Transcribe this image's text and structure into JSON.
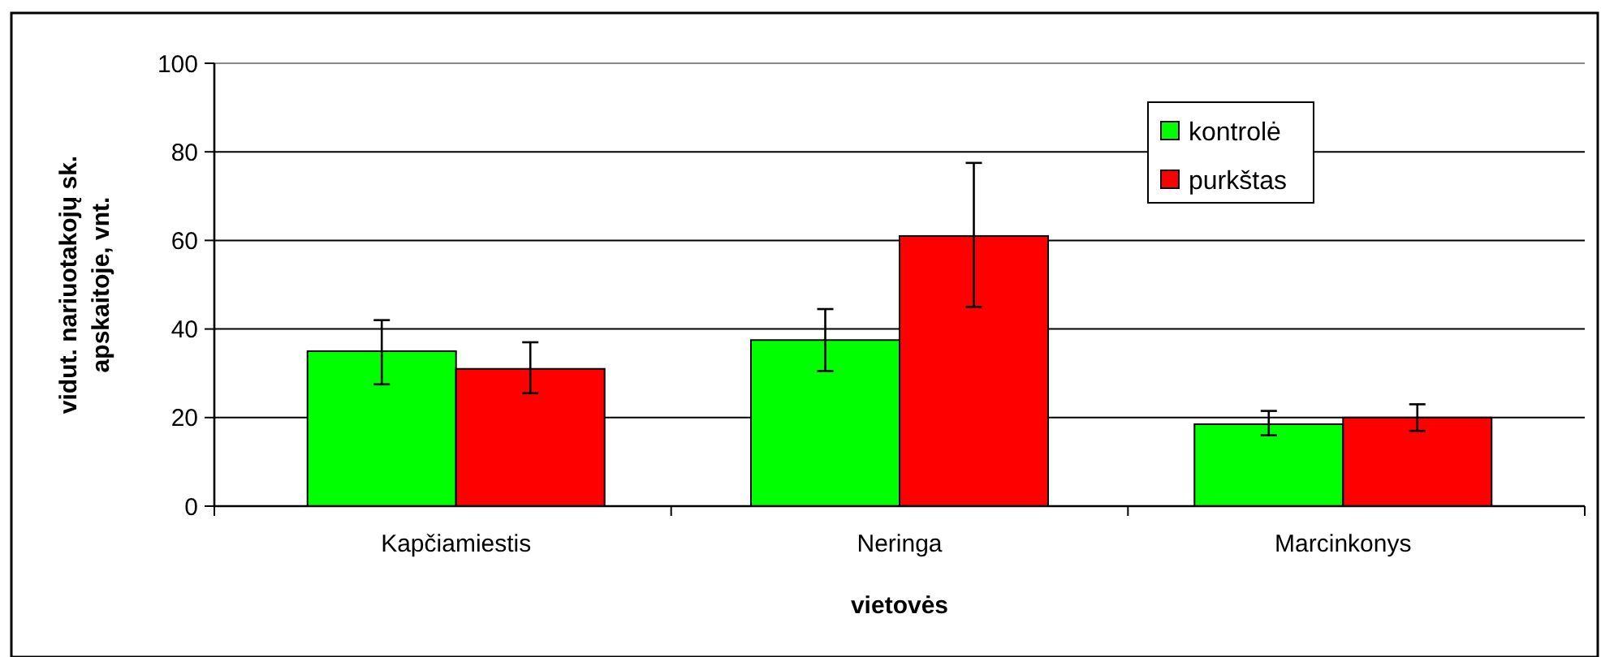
{
  "chart_data": {
    "type": "bar",
    "xlabel": "vietovės",
    "ylabel": "vidut. nariuotakojų sk. apskaitoje, vnt.",
    "categories": [
      "Kapčiamiestis",
      "Neringa",
      "Marcinkonys"
    ],
    "series": [
      {
        "name": "kontrolė",
        "color": "#00ff00",
        "values": [
          35,
          37.5,
          18.5
        ],
        "errors": [
          [
            27.5,
            42
          ],
          [
            30.5,
            44.5
          ],
          [
            16,
            21.5
          ]
        ]
      },
      {
        "name": "purkštas",
        "color": "#ff0000",
        "values": [
          31,
          61,
          20
        ],
        "errors": [
          [
            25.5,
            37
          ],
          [
            45,
            77.5
          ],
          [
            17,
            23
          ]
        ]
      }
    ],
    "ylim": [
      0,
      100
    ],
    "yticks": [
      0,
      20,
      40,
      60,
      80,
      100
    ],
    "grid": "y",
    "legend": "top right"
  }
}
